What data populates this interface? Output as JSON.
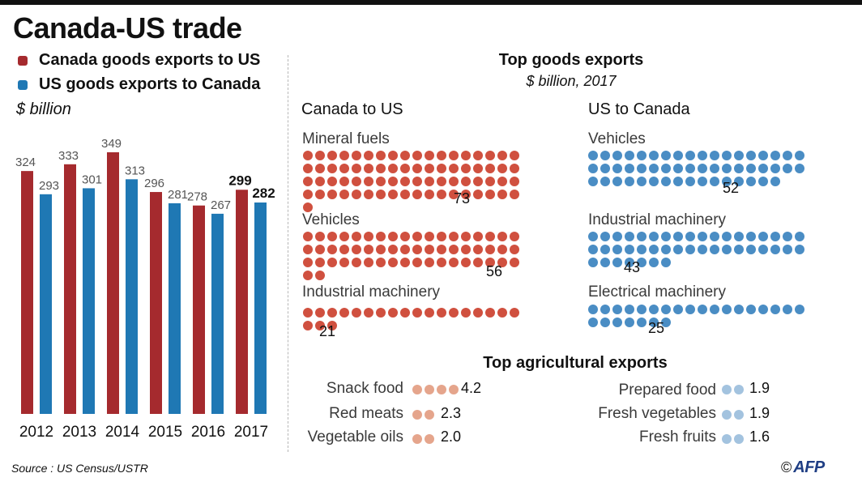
{
  "title": "Canada-US trade",
  "colors": {
    "canada": "#a52a2e",
    "us": "#1f78b4",
    "canada_dot": "#d0503f",
    "us_dot": "#4a8dc4",
    "canada_ag": "#e5a58c",
    "us_ag": "#a3c3df"
  },
  "legend": {
    "canada": "Canada goods exports to US",
    "us": "US goods exports to Canada"
  },
  "unit": "$ billion",
  "top_goods": {
    "title": "Top goods exports",
    "subtitle": "$ billion, 2017",
    "canada_head": "Canada to US",
    "us_head": "US to Canada",
    "canada_items": [
      {
        "label": "Mineral fuels",
        "value": 73
      },
      {
        "label": "Vehicles",
        "value": 56
      },
      {
        "label": "Industrial machinery",
        "value": 21
      }
    ],
    "us_items": [
      {
        "label": "Vehicles",
        "value": 52
      },
      {
        "label": "Industrial machinery",
        "value": 43
      },
      {
        "label": "Electrical machinery",
        "value": 25
      }
    ]
  },
  "ag": {
    "title": "Top agricultural exports",
    "canada_items": [
      {
        "label": "Snack food",
        "value": "4.2",
        "dots": 4
      },
      {
        "label": "Red meats",
        "value": "2.3",
        "dots": 2
      },
      {
        "label": "Vegetable oils",
        "value": "2.0",
        "dots": 2
      }
    ],
    "us_items": [
      {
        "label": "Prepared food",
        "value": "1.9",
        "dots": 2
      },
      {
        "label": "Fresh vegetables",
        "value": "1.9",
        "dots": 2
      },
      {
        "label": "Fresh fruits",
        "value": "1.6",
        "dots": 2
      }
    ]
  },
  "source": "Source : US Census/USTR",
  "credit": {
    "symbol": "©",
    "logo": "AFP"
  },
  "chart_data": {
    "type": "bar",
    "categories": [
      "2012",
      "2013",
      "2014",
      "2015",
      "2016",
      "2017"
    ],
    "series": [
      {
        "name": "Canada goods exports to US",
        "values": [
          324,
          333,
          349,
          296,
          278,
          299
        ]
      },
      {
        "name": "US goods exports to Canada",
        "values": [
          293,
          301,
          313,
          281,
          267,
          282
        ]
      }
    ],
    "ylabel": "$ billion",
    "ylim": [
      0,
      349
    ],
    "grid": false,
    "legend_position": "top-left",
    "highlight_last": true
  }
}
